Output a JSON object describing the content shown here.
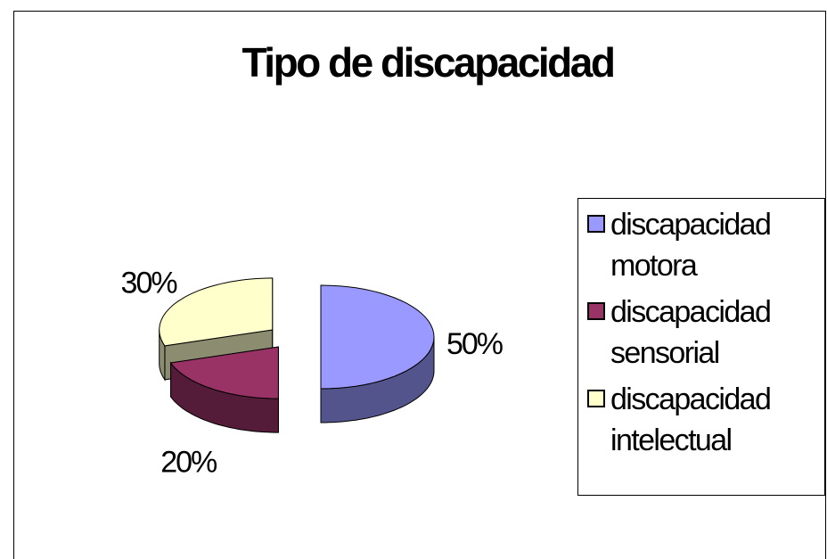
{
  "chart_data": {
    "type": "pie3d",
    "title": "Tipo de discapacidad",
    "categories": [
      "discapacidad motora",
      "discapacidad sensorial",
      "discapacidad intelectual"
    ],
    "values": [
      50,
      20,
      30
    ],
    "value_labels": [
      "50%",
      "20%",
      "30%"
    ],
    "colors": [
      "#9999ff",
      "#993366",
      "#ffffcc"
    ],
    "legend": "right"
  }
}
